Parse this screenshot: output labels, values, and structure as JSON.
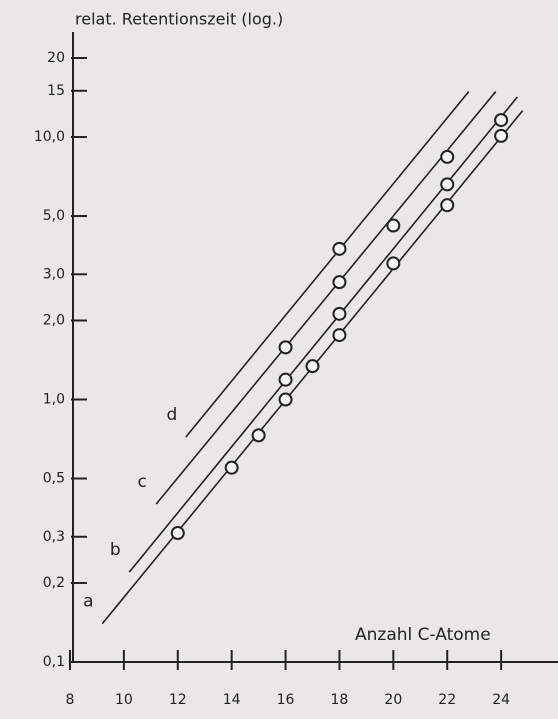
{
  "chart_data": {
    "type": "scatter",
    "y_axis_title": "relat. Retentionszeit (log.)",
    "x_axis_title": "Anzahl C-Atome",
    "log_y": true,
    "xlim": [
      8,
      26
    ],
    "ylim": [
      0.1,
      20
    ],
    "xticks": [
      8,
      10,
      12,
      14,
      16,
      18,
      20,
      22,
      24
    ],
    "yticks": [
      {
        "value": 0.1,
        "label": "0,1"
      },
      {
        "value": 0.2,
        "label": "0,2"
      },
      {
        "value": 0.3,
        "label": "0,3"
      },
      {
        "value": 0.5,
        "label": "0,5"
      },
      {
        "value": 1,
        "label": "1,0"
      },
      {
        "value": 2,
        "label": "2,0"
      },
      {
        "value": 3,
        "label": "3,0"
      },
      {
        "value": 5,
        "label": "5,0"
      },
      {
        "value": 10,
        "label": "10,0"
      },
      15,
      20
    ],
    "color": "#222222",
    "series": [
      {
        "name": "a",
        "x": [
          12,
          14,
          15,
          16,
          17,
          18,
          20,
          22,
          24
        ],
        "values": [
          0.31,
          0.55,
          0.73,
          1.0,
          1.34,
          1.76,
          3.3,
          5.5,
          10.1
        ],
        "line_x": [
          9.2,
          24.8
        ],
        "line_values": [
          0.14,
          12.6
        ]
      },
      {
        "name": "b",
        "x": [
          16,
          18,
          22,
          24
        ],
        "values": [
          1.19,
          2.12,
          6.6,
          11.6
        ],
        "line_x": [
          10.2,
          24.6
        ],
        "line_values": [
          0.22,
          14.2
        ]
      },
      {
        "name": "c",
        "x": [
          16,
          18,
          20,
          22
        ],
        "values": [
          1.58,
          2.8,
          4.6,
          8.4
        ],
        "line_x": [
          11.2,
          23.8
        ],
        "line_values": [
          0.4,
          14.9
        ]
      },
      {
        "name": "d",
        "x": [
          18
        ],
        "values": [
          3.75
        ],
        "line_x": [
          12.3,
          22.8
        ],
        "line_values": [
          0.72,
          14.9
        ]
      }
    ]
  }
}
